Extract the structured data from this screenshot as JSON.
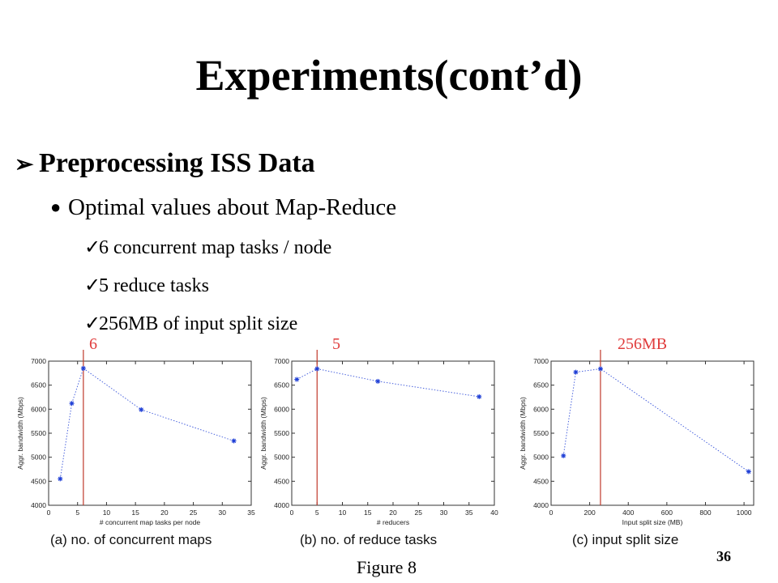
{
  "slide": {
    "title": "Experiments(cont’d)",
    "bullet1": "Preprocessing ISS Data",
    "bullet2": "Optimal values about Map-Reduce",
    "checks": [
      "6 concurrent map tasks / node",
      "5 reduce tasks",
      "256MB of input split size"
    ],
    "figure_label": "Figure 8",
    "page_number": "36",
    "arrow_glyph": "➢",
    "dot_glyph": "●",
    "check_glyph": "✓"
  },
  "colors": {
    "marker": "#e03c3c",
    "vline": "#c0392b",
    "series": "#1f3fd6",
    "axis": "#333333"
  },
  "chart_data": [
    {
      "type": "line",
      "caption": "(a) no. of concurrent maps",
      "xlabel": "# concurrent map tasks per node",
      "ylabel": "Aggr. bandwidth (Mbps)",
      "xlim": [
        0,
        35
      ],
      "ylim": [
        4000,
        7000
      ],
      "xticks": [
        0,
        5,
        10,
        15,
        20,
        25,
        30,
        35
      ],
      "yticks": [
        4000,
        4500,
        5000,
        5500,
        6000,
        6500,
        7000
      ],
      "x": [
        2,
        4,
        6,
        16,
        32
      ],
      "y": [
        4550,
        6120,
        6850,
        5990,
        5340
      ],
      "highlight_x": 6,
      "highlight_label": "6"
    },
    {
      "type": "line",
      "caption": "(b) no. of reduce tasks",
      "xlabel": "# reducers",
      "ylabel": "Aggr. bandwidth (Mbps)",
      "xlim": [
        0,
        40
      ],
      "ylim": [
        4000,
        7000
      ],
      "xticks": [
        0,
        5,
        10,
        15,
        20,
        25,
        30,
        35,
        40
      ],
      "yticks": [
        4000,
        4500,
        5000,
        5500,
        6000,
        6500,
        7000
      ],
      "x": [
        1,
        5,
        17,
        37
      ],
      "y": [
        6620,
        6840,
        6580,
        6260
      ],
      "highlight_x": 5,
      "highlight_label": "5"
    },
    {
      "type": "line",
      "caption": "(c) input split size",
      "xlabel": "Input split size (MB)",
      "ylabel": "Aggr. bandwidth (Mbps)",
      "xlim": [
        0,
        1050
      ],
      "ylim": [
        4000,
        7000
      ],
      "xticks": [
        0,
        200,
        400,
        600,
        800,
        1000
      ],
      "yticks": [
        4000,
        4500,
        5000,
        5500,
        6000,
        6500,
        7000
      ],
      "x": [
        64,
        128,
        256,
        1024
      ],
      "y": [
        5030,
        6770,
        6840,
        4700
      ],
      "highlight_x": 256,
      "highlight_label": "256MB"
    }
  ]
}
